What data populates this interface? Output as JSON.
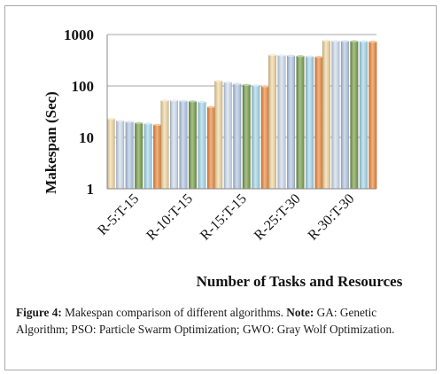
{
  "chart_data": {
    "type": "bar",
    "title": "",
    "xlabel": "Number of Tasks and Resources",
    "ylabel": "Makespan (Sec)",
    "yscale": "log",
    "ylim": [
      1,
      1000
    ],
    "yticks": [
      "1",
      "10",
      "100",
      "1000"
    ],
    "grid": true,
    "legend": "none",
    "categories": [
      "R-5:T-15",
      "R-10:T-15",
      "R-15:T-15",
      "R-25:T-30",
      "R-30:T-30"
    ],
    "series": [
      {
        "values": [
          23,
          52,
          125,
          400,
          760
        ],
        "color": "#f3d9a2"
      },
      {
        "values": [
          21,
          52,
          118,
          395,
          750
        ],
        "color": "#d0def0"
      },
      {
        "values": [
          20,
          51,
          110,
          388,
          745
        ],
        "color": "#b6c9e6"
      },
      {
        "values": [
          19,
          50,
          105,
          380,
          740
        ],
        "color": "#79a04c"
      },
      {
        "values": [
          18.5,
          49,
          102,
          374,
          735
        ],
        "color": "#a8d9ec"
      },
      {
        "values": [
          17.5,
          39,
          98,
          368,
          725
        ],
        "color": "#ee8a3d"
      }
    ]
  },
  "caption": {
    "label": "Figure 4:",
    "text": " Makespan comparison of different algorithms. ",
    "note_label": "Note:",
    "note_text": " GA: Genetic Algorithm; PSO: Particle Swarm Optimization; GWO: Gray Wolf Optimization."
  }
}
